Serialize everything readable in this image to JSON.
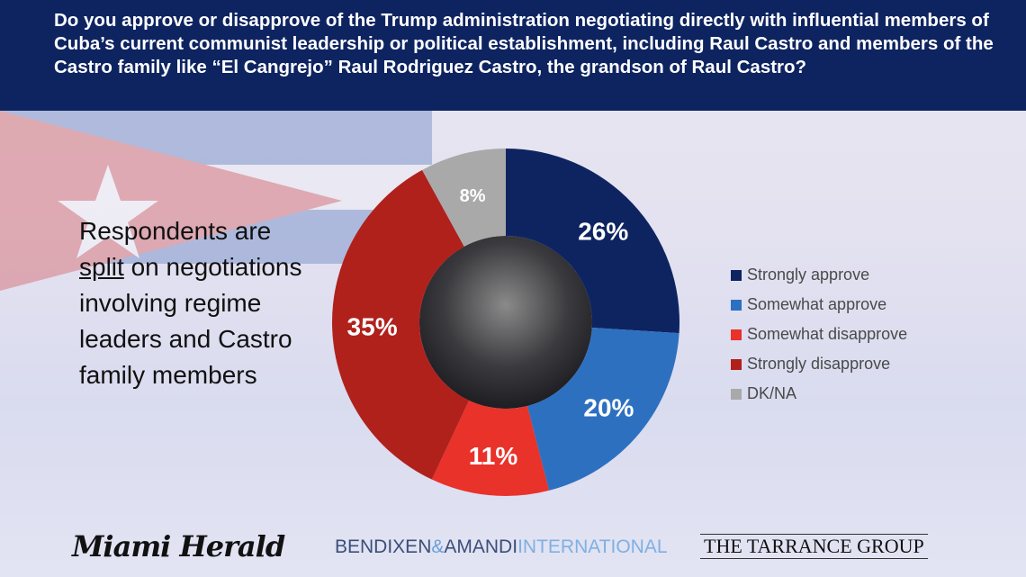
{
  "header": {
    "question": "Do you approve or disapprove of the Trump administration negotiating directly with influential members of Cuba’s current communist leadership or political establishment, including Raul Castro and members of the Castro family like “El Cangrejo” Raul Rodriguez Castro, the grandson of Raul Castro?"
  },
  "lede": {
    "before": "Respondents are ",
    "emphasis": "split",
    "after": " on negotiations involving regime leaders and Castro family members"
  },
  "chart_data": {
    "type": "pie",
    "donut": true,
    "categories": [
      "Strongly approve",
      "Somewhat approve",
      "Somewhat disapprove",
      "Strongly disapprove",
      "DK/NA"
    ],
    "values": [
      26,
      20,
      11,
      35,
      8
    ],
    "labels": [
      "26%",
      "20%",
      "11%",
      "35%",
      "8%"
    ],
    "colors": [
      "#0e2461",
      "#2e70c0",
      "#e8322a",
      "#b0211c",
      "#a9a9a9"
    ],
    "legend_placement": "right"
  },
  "logos": {
    "miami_herald": "Miami Herald",
    "bendixen_1": "BENDIXEN",
    "bendixen_amp": "&",
    "bendixen_2": "AMANDI",
    "bendixen_3": "INTERNATIONAL",
    "tarrance": "THE TARRANCE GROUP"
  }
}
